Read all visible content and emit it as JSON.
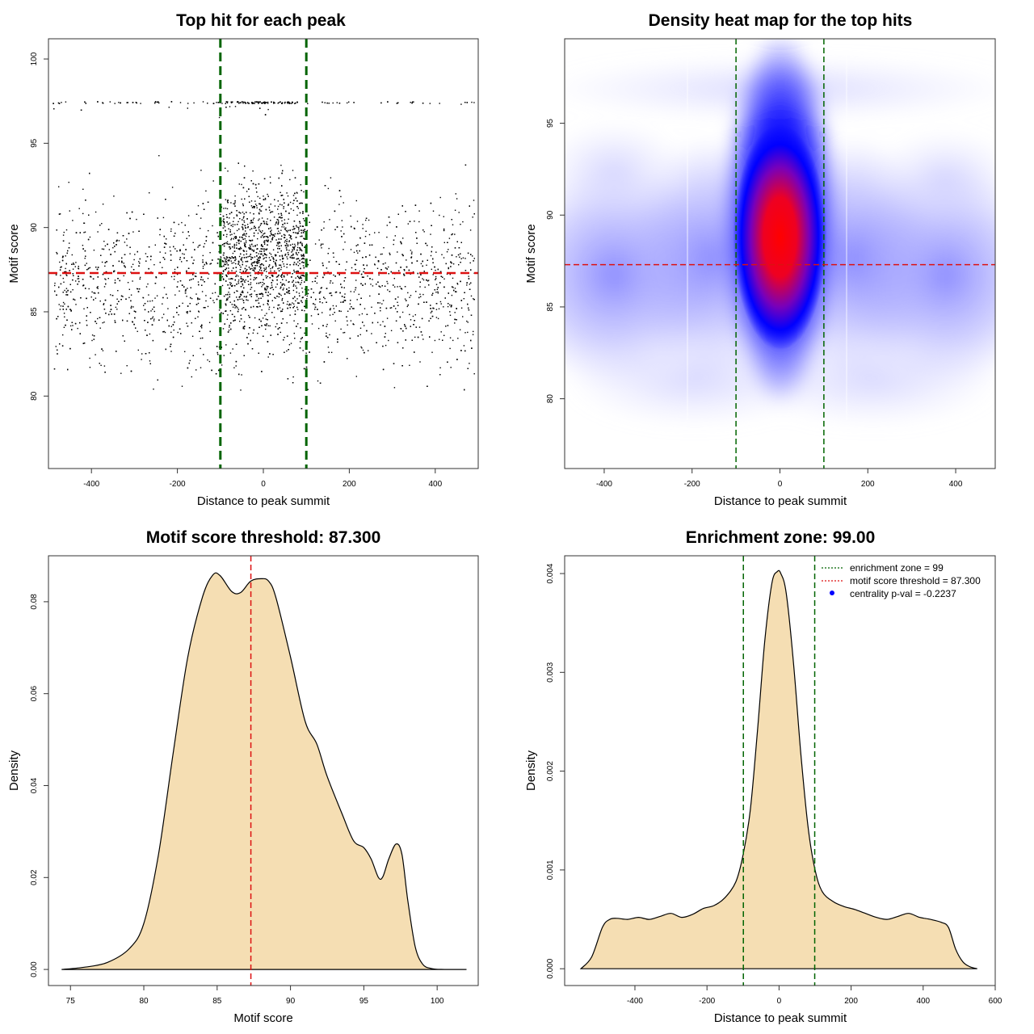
{
  "chart_data": [
    {
      "id": "scatter",
      "type": "scatter",
      "title": "Top hit for each peak",
      "xlabel": "Distance to peak summit",
      "ylabel": "Motif score",
      "xlim": [
        -500,
        500
      ],
      "ylim": [
        75.7,
        101.2
      ],
      "xticks": [
        -400,
        -200,
        0,
        200,
        400
      ],
      "xtick_labels": [
        "-400",
        "-200",
        "0",
        "200",
        "400"
      ],
      "yticks": [
        80,
        85,
        90,
        95,
        100
      ],
      "ytick_labels": [
        "80",
        "85",
        "90",
        "95",
        "100"
      ],
      "vlines": [
        -100,
        100
      ],
      "hline": 87.3,
      "n_points": 5000,
      "central_fraction": 0.33,
      "colors": {
        "points": "#000000",
        "vline": "#006400",
        "hline": "#dd1111"
      }
    },
    {
      "id": "heatmap",
      "type": "heatmap",
      "title": "Density heat map for the top hits",
      "xlabel": "Distance to peak summit",
      "ylabel": "Motif score",
      "xlim": [
        -490,
        490
      ],
      "ylim": [
        76.2,
        99.6
      ],
      "xticks": [
        -400,
        -200,
        0,
        200,
        400
      ],
      "xtick_labels": [
        "-400",
        "-200",
        "0",
        "200",
        "400"
      ],
      "yticks": [
        80,
        85,
        90,
        95
      ],
      "ytick_labels": [
        "80",
        "85",
        "90",
        "95"
      ],
      "vlines": [
        -100,
        100
      ],
      "hline": 87.3,
      "density_peak": {
        "x": 0,
        "y": 88.8
      },
      "colors": {
        "low": "#ffffff",
        "mid": "#0000ff",
        "high": "#ff0000",
        "vline": "#006400",
        "hline": "#dd1111"
      }
    },
    {
      "id": "score-density",
      "type": "area",
      "title": "Motif score threshold: 87.300",
      "xlabel": "Motif score",
      "ylabel": "Density",
      "xlim": [
        73.5,
        102.8
      ],
      "ylim": [
        -0.0035,
        0.09
      ],
      "xticks": [
        75,
        80,
        85,
        90,
        95,
        100
      ],
      "xtick_labels": [
        "75",
        "80",
        "85",
        "90",
        "95",
        "100"
      ],
      "yticks": [
        0,
        0.02,
        0.04,
        0.06,
        0.08
      ],
      "ytick_labels": [
        "0.00",
        "0.02",
        "0.04",
        "0.06",
        "0.08"
      ],
      "x": [
        74.4,
        76,
        77.5,
        79,
        80,
        81,
        82,
        83,
        84,
        84.7,
        85.2,
        86,
        86.6,
        87.3,
        88,
        88.5,
        89,
        90,
        91,
        91.8,
        92.5,
        93.5,
        94.3,
        95,
        95.5,
        96,
        96.3,
        96.7,
        97.2,
        97.6,
        98,
        98.5,
        99,
        99.6,
        100.5,
        102
      ],
      "y": [
        0,
        0.0005,
        0.0015,
        0.0045,
        0.01,
        0.025,
        0.047,
        0.068,
        0.081,
        0.0858,
        0.0857,
        0.0822,
        0.082,
        0.0845,
        0.085,
        0.0845,
        0.081,
        0.068,
        0.054,
        0.049,
        0.042,
        0.034,
        0.028,
        0.0265,
        0.024,
        0.02,
        0.0202,
        0.024,
        0.0273,
        0.025,
        0.015,
        0.005,
        0.0012,
        0.0002,
        0,
        0
      ],
      "vline": 87.3,
      "colors": {
        "fill": "#f5deb3",
        "line": "#000000",
        "vline": "#dd1111"
      }
    },
    {
      "id": "distance-density",
      "type": "area",
      "title": "Enrichment zone: 99.00",
      "xlabel": "Distance to peak summit",
      "ylabel": "Density",
      "xlim": [
        -595,
        600
      ],
      "ylim": [
        -0.00017,
        0.00418
      ],
      "xticks": [
        -400,
        -200,
        0,
        200,
        400,
        600
      ],
      "xtick_labels": [
        "-400",
        "-200",
        "0",
        "200",
        "400",
        "600"
      ],
      "yticks": [
        0,
        0.001,
        0.002,
        0.003,
        0.004
      ],
      "ytick_labels": [
        "0.000",
        "0.001",
        "0.002",
        "0.003",
        "0.004"
      ],
      "x": [
        -550,
        -520,
        -490,
        -470,
        -450,
        -420,
        -390,
        -360,
        -330,
        -300,
        -270,
        -240,
        -210,
        -180,
        -150,
        -120,
        -100,
        -80,
        -60,
        -40,
        -20,
        -5,
        5,
        20,
        40,
        60,
        80,
        100,
        120,
        150,
        180,
        210,
        240,
        270,
        300,
        330,
        360,
        390,
        420,
        450,
        470,
        490,
        510,
        530,
        550
      ],
      "y": [
        0,
        0.00012,
        0.00042,
        0.0005,
        0.00051,
        0.0005,
        0.00052,
        0.0005,
        0.00053,
        0.00056,
        0.00052,
        0.00055,
        0.00061,
        0.00064,
        0.00072,
        0.00088,
        0.00115,
        0.0016,
        0.0024,
        0.0033,
        0.0039,
        0.00402,
        0.004,
        0.0038,
        0.0031,
        0.0022,
        0.00145,
        0.001,
        0.00078,
        0.00068,
        0.00063,
        0.0006,
        0.00056,
        0.00052,
        0.0005,
        0.00053,
        0.00056,
        0.00052,
        0.0005,
        0.00047,
        0.00042,
        0.0002,
        7e-05,
        2e-05,
        0
      ],
      "vlines": [
        -99,
        99
      ],
      "legend": {
        "position": "top-right",
        "entries": [
          {
            "label": "enrichment zone = 99",
            "kind": "dotted-line",
            "color": "#006400"
          },
          {
            "label": "motif score threshold = 87.300",
            "kind": "dotted-line",
            "color": "#dd1111"
          },
          {
            "label": "centrality p-val = -0.2237",
            "kind": "point",
            "color": "#0000ff"
          }
        ]
      },
      "colors": {
        "fill": "#f5deb3",
        "line": "#000000",
        "vline": "#006400"
      }
    }
  ]
}
